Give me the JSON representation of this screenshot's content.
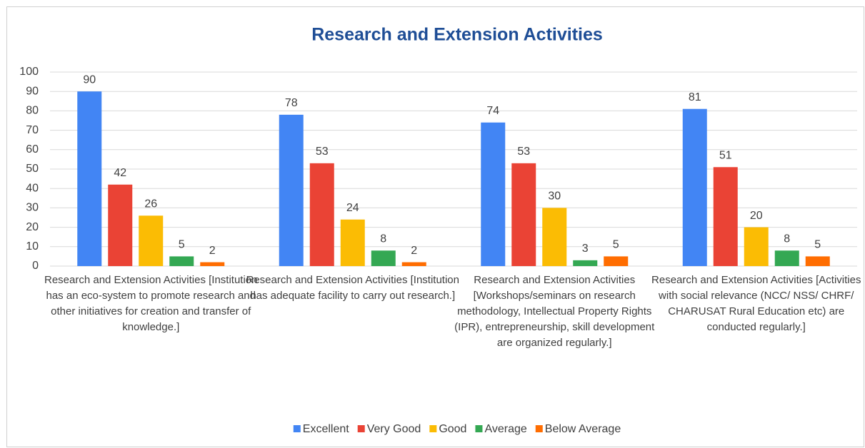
{
  "chart_data": {
    "type": "bar",
    "title": "Research and Extension Activities",
    "categories": [
      "Research and Extension Activities [Institution has an eco-system to promote research and other initiatives for creation and transfer of knowledge.]",
      "Research and Extension Activities [Institution has adequate facility to carry out research.]",
      "Research and Extension Activities [Workshops/seminars on research methodology, Intellectual Property Rights (IPR), entrepreneurship, skill development are organized regularly.]",
      "Research and Extension Activities [Activities with social relevance (NCC/ NSS/ CHRF/ CHARUSAT Rural Education etc) are conducted regularly.]"
    ],
    "series": [
      {
        "name": "Excellent",
        "color": "#4285f4",
        "values": [
          90,
          78,
          74,
          81
        ]
      },
      {
        "name": "Very Good",
        "color": "#ea4335",
        "values": [
          42,
          53,
          53,
          51
        ]
      },
      {
        "name": "Good",
        "color": "#fbbc04",
        "values": [
          26,
          24,
          30,
          20
        ]
      },
      {
        "name": "Average",
        "color": "#34a853",
        "values": [
          5,
          8,
          3,
          8
        ]
      },
      {
        "name": "Below Average",
        "color": "#ff6d01",
        "values": [
          2,
          2,
          5,
          5
        ]
      }
    ],
    "ylim": [
      0,
      100
    ],
    "yticks": [
      0,
      10,
      20,
      30,
      40,
      50,
      60,
      70,
      80,
      90,
      100
    ],
    "grid": true,
    "legend": "bottom"
  }
}
